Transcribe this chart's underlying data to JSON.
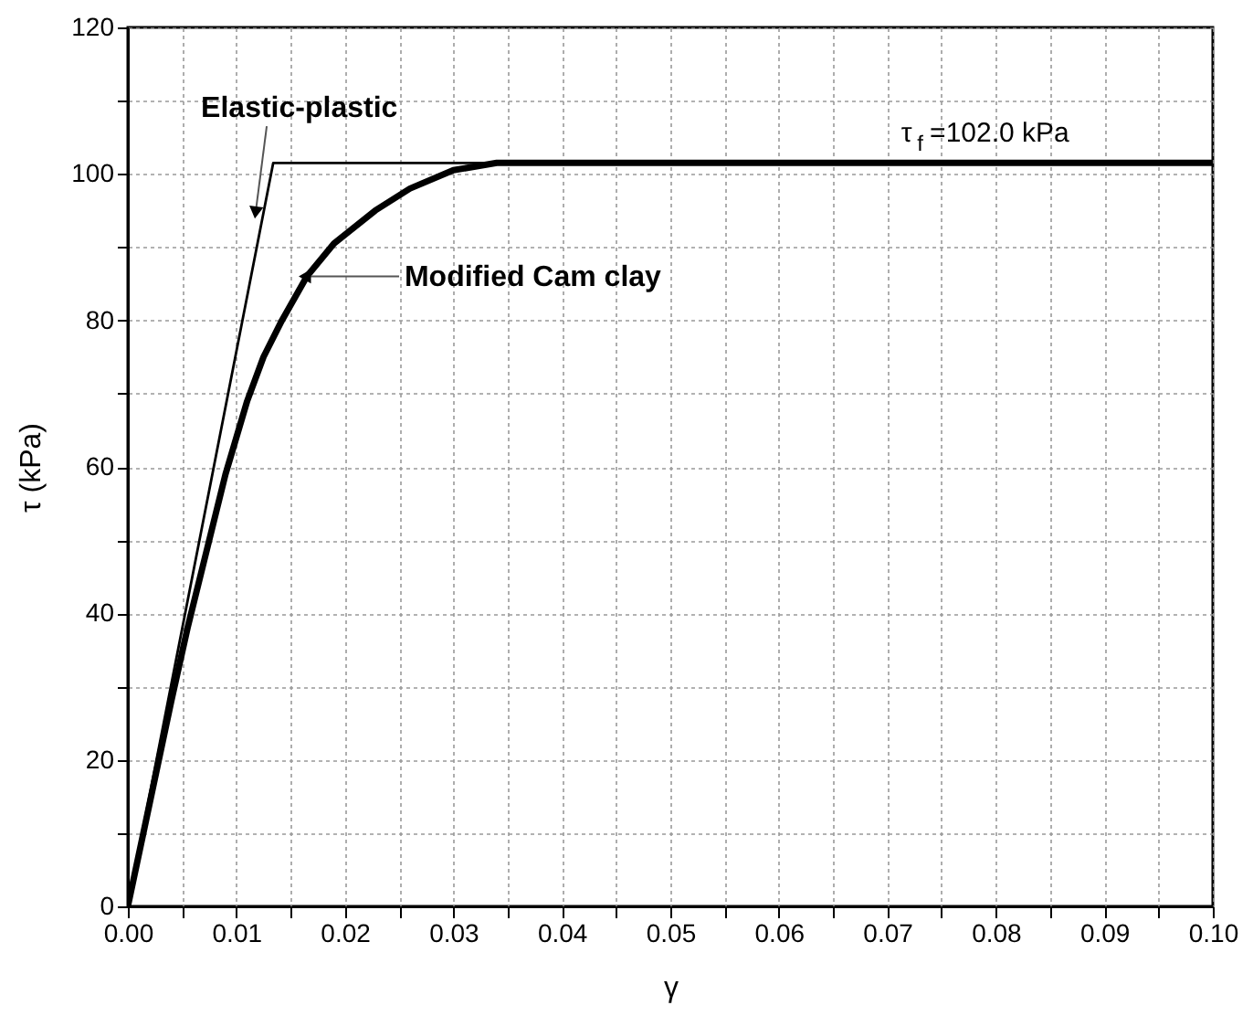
{
  "chart_data": {
    "type": "line",
    "xlabel": "γ",
    "ylabel": "τ (kPa)",
    "xlim": [
      0,
      0.1
    ],
    "ylim": [
      0,
      120
    ],
    "xticks": [
      {
        "value": 0,
        "label": "0.00"
      },
      {
        "value": 0.005,
        "label": null
      },
      {
        "value": 0.01,
        "label": "0.01"
      },
      {
        "value": 0.015,
        "label": null
      },
      {
        "value": 0.02,
        "label": "0.02"
      },
      {
        "value": 0.025,
        "label": null
      },
      {
        "value": 0.03,
        "label": "0.03"
      },
      {
        "value": 0.035,
        "label": null
      },
      {
        "value": 0.04,
        "label": "0.04"
      },
      {
        "value": 0.045,
        "label": null
      },
      {
        "value": 0.05,
        "label": "0.05"
      },
      {
        "value": 0.055,
        "label": null
      },
      {
        "value": 0.06,
        "label": "0.06"
      },
      {
        "value": 0.065,
        "label": null
      },
      {
        "value": 0.07,
        "label": "0.07"
      },
      {
        "value": 0.075,
        "label": null
      },
      {
        "value": 0.08,
        "label": "0.08"
      },
      {
        "value": 0.085,
        "label": null
      },
      {
        "value": 0.09,
        "label": "0.09"
      },
      {
        "value": 0.095,
        "label": null
      },
      {
        "value": 0.1,
        "label": "0.10"
      }
    ],
    "yticks": [
      0,
      {
        "value": 10,
        "label": null
      },
      20,
      {
        "value": 30,
        "label": null
      },
      40,
      {
        "value": 50,
        "label": null
      },
      60,
      {
        "value": 70,
        "label": null
      },
      80,
      {
        "value": 90,
        "label": null
      },
      100,
      {
        "value": 110,
        "label": null
      },
      120
    ],
    "grid": true,
    "marker": "none",
    "line_style": "solid",
    "series": [
      {
        "color": "#000000",
        "x": [
          0,
          0.0134,
          0.1
        ],
        "values": [
          0,
          101.5,
          101.5
        ]
      },
      {
        "color": "#000000",
        "x": [
          0,
          0.002,
          0.004,
          0.0055,
          0.007,
          0.009,
          0.011,
          0.0125,
          0.0142,
          0.0165,
          0.019,
          0.0228,
          0.026,
          0.03,
          0.034,
          0.1
        ],
        "values": [
          0,
          14,
          28,
          38,
          47,
          59,
          69,
          75,
          80,
          86,
          90.5,
          95,
          98,
          100.5,
          101.5,
          101.5
        ]
      }
    ],
    "annotations": [
      {
        "text": "Elastic-plastic",
        "x": 0.0118,
        "y": 95
      },
      {
        "text": "Modified Cam clay",
        "x": 0.0165,
        "y": 86
      },
      "τ$_{f}$ =102.0 kPa"
    ]
  }
}
